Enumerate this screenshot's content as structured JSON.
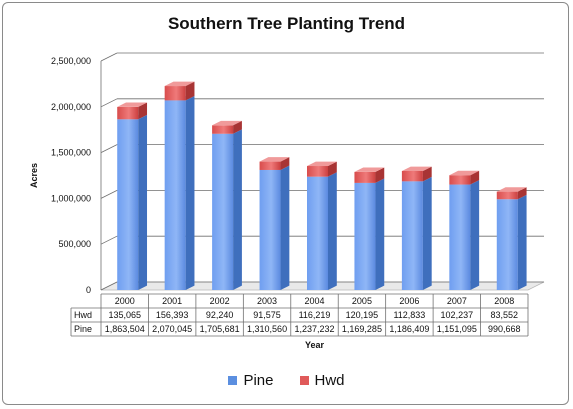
{
  "chart_data": {
    "type": "bar",
    "stacked": true,
    "title": "Southern Tree Planting Trend",
    "xlabel": "Year",
    "ylabel": "Acres",
    "categories": [
      "2000",
      "2001",
      "2002",
      "2003",
      "2004",
      "2005",
      "2006",
      "2007",
      "2008"
    ],
    "series": [
      {
        "name": "Pine",
        "values": [
          1863504,
          2070045,
          1705681,
          1310560,
          1237232,
          1169285,
          1186409,
          1151095,
          990668
        ],
        "color": "#5b8fe0"
      },
      {
        "name": "Hwd",
        "values": [
          135065,
          156393,
          92240,
          91575,
          116219,
          120195,
          112833,
          102237,
          83552
        ],
        "color": "#e05a5a"
      }
    ],
    "table": {
      "rows": [
        {
          "label": "Hwd",
          "cells": [
            "135,065",
            "156,393",
            "92,240",
            "91,575",
            "116,219",
            "120,195",
            "112,833",
            "102,237",
            "83,552"
          ]
        },
        {
          "label": "Pine",
          "cells": [
            "1,863,504",
            "2,070,045",
            "1,705,681",
            "1,310,560",
            "1,237,232",
            "1,169,285",
            "1,186,409",
            "1,151,095",
            "990,668"
          ]
        }
      ]
    },
    "ylim": [
      0,
      2500000
    ],
    "yticks": [
      0,
      500000,
      1000000,
      1500000,
      2000000,
      2500000
    ],
    "ytick_labels": [
      "0",
      "500,000",
      "1,000,000",
      "1,500,000",
      "2,000,000",
      "2,500,000"
    ],
    "grid": true,
    "legend_position": "bottom"
  }
}
